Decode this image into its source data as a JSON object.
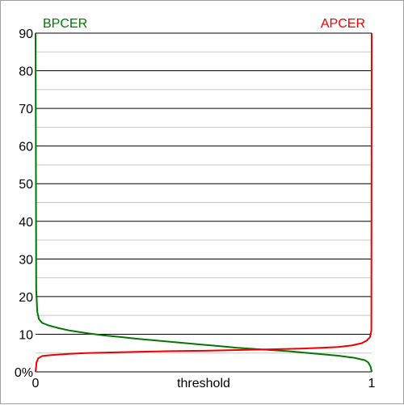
{
  "chart_data": {
    "type": "line",
    "xlabel": "threshold",
    "x_ticks": [
      "0",
      "1"
    ],
    "y_ticks": [
      "0%",
      "10",
      "20",
      "30",
      "40",
      "50",
      "60",
      "70",
      "80",
      "90"
    ],
    "ylim": [
      0,
      90
    ],
    "xlim": [
      0,
      1
    ],
    "grid": {
      "major_every": 10,
      "minor_every": 5
    },
    "series": [
      {
        "name": "BPCER",
        "color": "#007700",
        "points": [
          [
            0,
            90
          ],
          [
            0.001,
            60
          ],
          [
            0.002,
            22
          ],
          [
            0.005,
            16
          ],
          [
            0.01,
            14
          ],
          [
            0.02,
            13
          ],
          [
            0.04,
            12.3
          ],
          [
            0.07,
            11.6
          ],
          [
            0.1,
            11
          ],
          [
            0.15,
            10.3
          ],
          [
            0.2,
            9.7
          ],
          [
            0.25,
            9.3
          ],
          [
            0.3,
            8.8
          ],
          [
            0.35,
            8.4
          ],
          [
            0.4,
            8
          ],
          [
            0.45,
            7.6
          ],
          [
            0.5,
            7.2
          ],
          [
            0.55,
            6.8
          ],
          [
            0.6,
            6.4
          ],
          [
            0.65,
            6.1
          ],
          [
            0.7,
            5.8
          ],
          [
            0.75,
            5.5
          ],
          [
            0.8,
            5.1
          ],
          [
            0.85,
            4.7
          ],
          [
            0.9,
            4.3
          ],
          [
            0.95,
            3.7
          ],
          [
            0.98,
            3.1
          ],
          [
            0.99,
            2.5
          ],
          [
            0.997,
            1.3
          ],
          [
            1,
            0
          ]
        ]
      },
      {
        "name": "APCER",
        "color": "#ee0000",
        "points": [
          [
            0,
            0
          ],
          [
            0.003,
            2.5
          ],
          [
            0.008,
            3.6
          ],
          [
            0.02,
            4.2
          ],
          [
            0.05,
            4.5
          ],
          [
            0.1,
            4.8
          ],
          [
            0.15,
            5
          ],
          [
            0.2,
            5.1
          ],
          [
            0.3,
            5.3
          ],
          [
            0.4,
            5.5
          ],
          [
            0.5,
            5.6
          ],
          [
            0.6,
            5.8
          ],
          [
            0.7,
            6
          ],
          [
            0.75,
            6.1
          ],
          [
            0.8,
            6.2
          ],
          [
            0.85,
            6.4
          ],
          [
            0.9,
            6.6
          ],
          [
            0.94,
            7
          ],
          [
            0.97,
            7.6
          ],
          [
            0.985,
            8.3
          ],
          [
            0.995,
            9.2
          ],
          [
            0.999,
            11
          ],
          [
            1,
            90
          ]
        ]
      }
    ]
  }
}
